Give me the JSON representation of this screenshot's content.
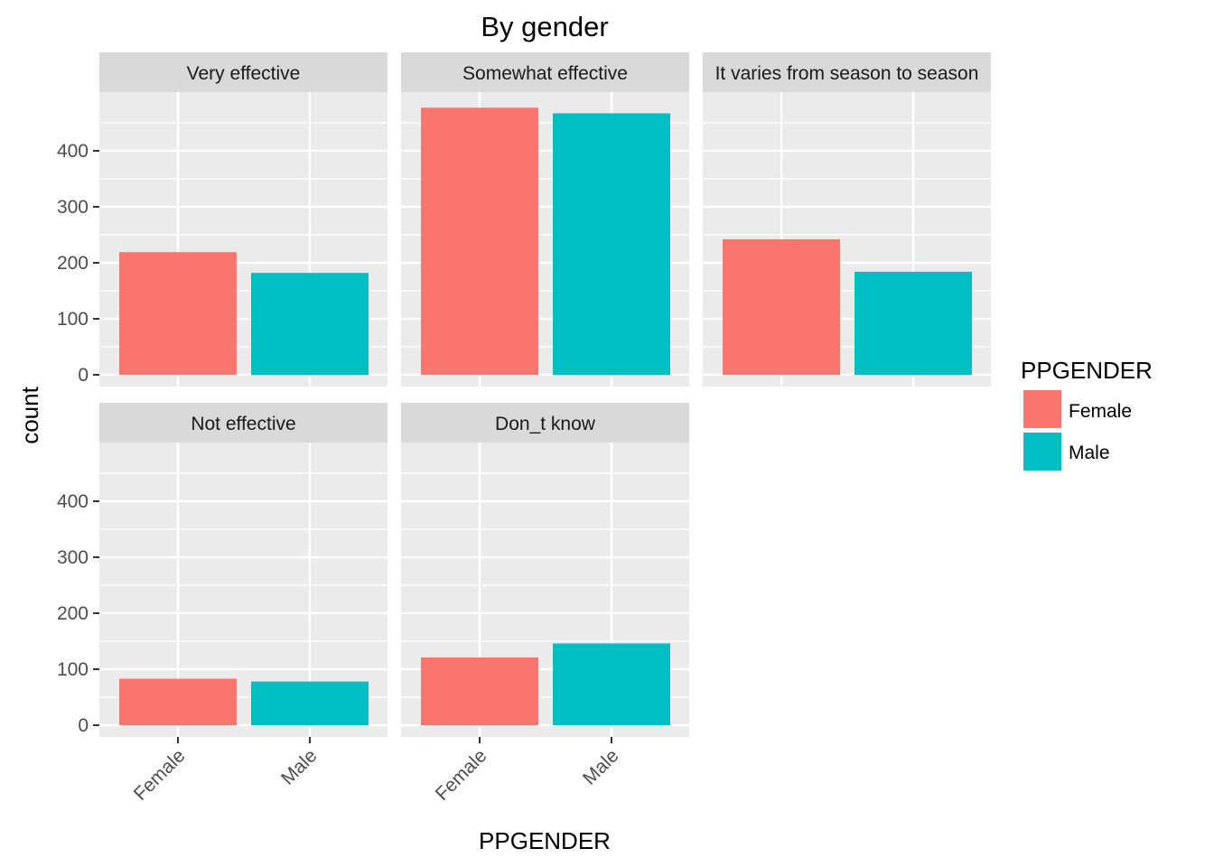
{
  "chart_data": {
    "type": "bar",
    "title": "By gender",
    "xlabel": "PPGENDER",
    "ylabel": "count",
    "ylim": [
      0,
      480
    ],
    "y_ticks": [
      0,
      100,
      200,
      300,
      400
    ],
    "y_tick_labels": [
      "0",
      "100",
      "200",
      "300",
      "400"
    ],
    "categories": [
      "Female",
      "Male"
    ],
    "grid": true,
    "legend": {
      "title": "PPGENDER",
      "placement": "right",
      "entries": [
        {
          "name": "Female",
          "color": "#F8766D"
        },
        {
          "name": "Male",
          "color": "#00BFC4"
        }
      ]
    },
    "facets": [
      {
        "label": "Very effective",
        "values": [
          219,
          182
        ]
      },
      {
        "label": "Somewhat effective",
        "values": [
          477,
          467
        ]
      },
      {
        "label": "It varies from season to season",
        "values": [
          242,
          184
        ]
      },
      {
        "label": "Not effective",
        "values": [
          83,
          78
        ]
      },
      {
        "label": "Don_t know",
        "values": [
          121,
          146
        ]
      }
    ]
  }
}
